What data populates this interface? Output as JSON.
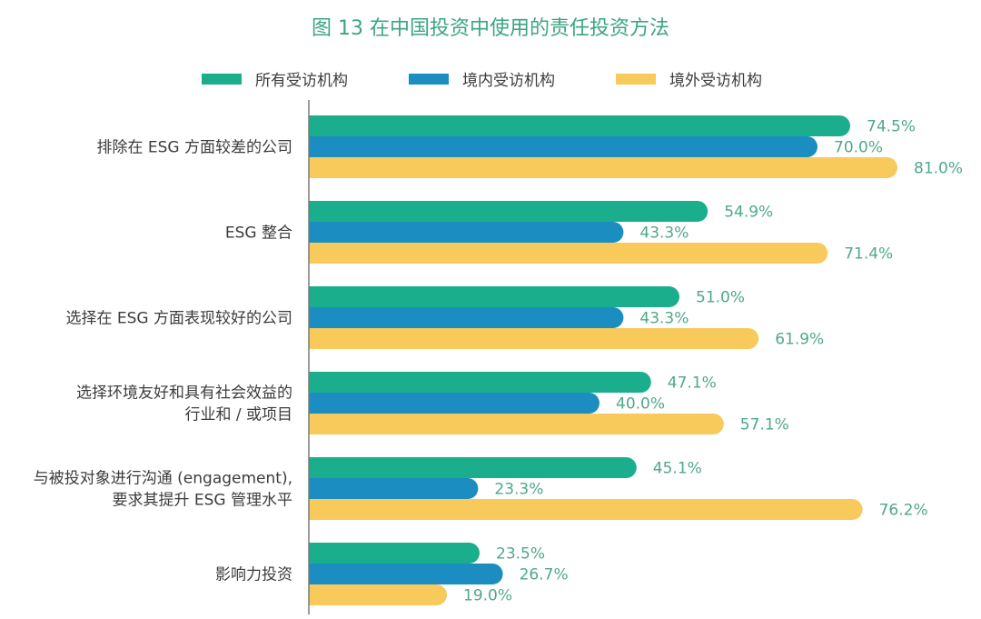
{
  "chart_data": {
    "type": "bar",
    "orientation": "horizontal",
    "title": "图 13  在中国投资中使用的责任投资方法",
    "xlabel": "",
    "ylabel": "",
    "xlim": [
      0,
      100
    ],
    "grid": false,
    "legend_position": "top",
    "value_suffix": "%",
    "categories": [
      [
        "排除在 ESG 方面较差的公司"
      ],
      [
        "ESG 整合"
      ],
      [
        "选择在 ESG 方面表现较好的公司"
      ],
      [
        "选择环境友好和具有社会效益的",
        "行业和 / 或项目"
      ],
      [
        "与被投对象进行沟通 (engagement),",
        "要求其提升 ESG 管理水平"
      ],
      [
        "影响力投资"
      ]
    ],
    "series": [
      {
        "name": "所有受访机构",
        "color": "#1aae8c",
        "values": [
          74.5,
          54.9,
          51.0,
          47.1,
          45.1,
          23.5
        ]
      },
      {
        "name": "境内受访机构",
        "color": "#1b8dc0",
        "values": [
          70.0,
          43.3,
          43.3,
          40.0,
          23.3,
          26.7
        ]
      },
      {
        "name": "境外受访机构",
        "color": "#f7ca5b",
        "values": [
          81.0,
          71.4,
          61.9,
          57.1,
          76.2,
          19.0
        ]
      }
    ],
    "axis_color": "#7a7a7a",
    "title_color": "#3aa583",
    "value_label_color": "#4fa88a"
  }
}
